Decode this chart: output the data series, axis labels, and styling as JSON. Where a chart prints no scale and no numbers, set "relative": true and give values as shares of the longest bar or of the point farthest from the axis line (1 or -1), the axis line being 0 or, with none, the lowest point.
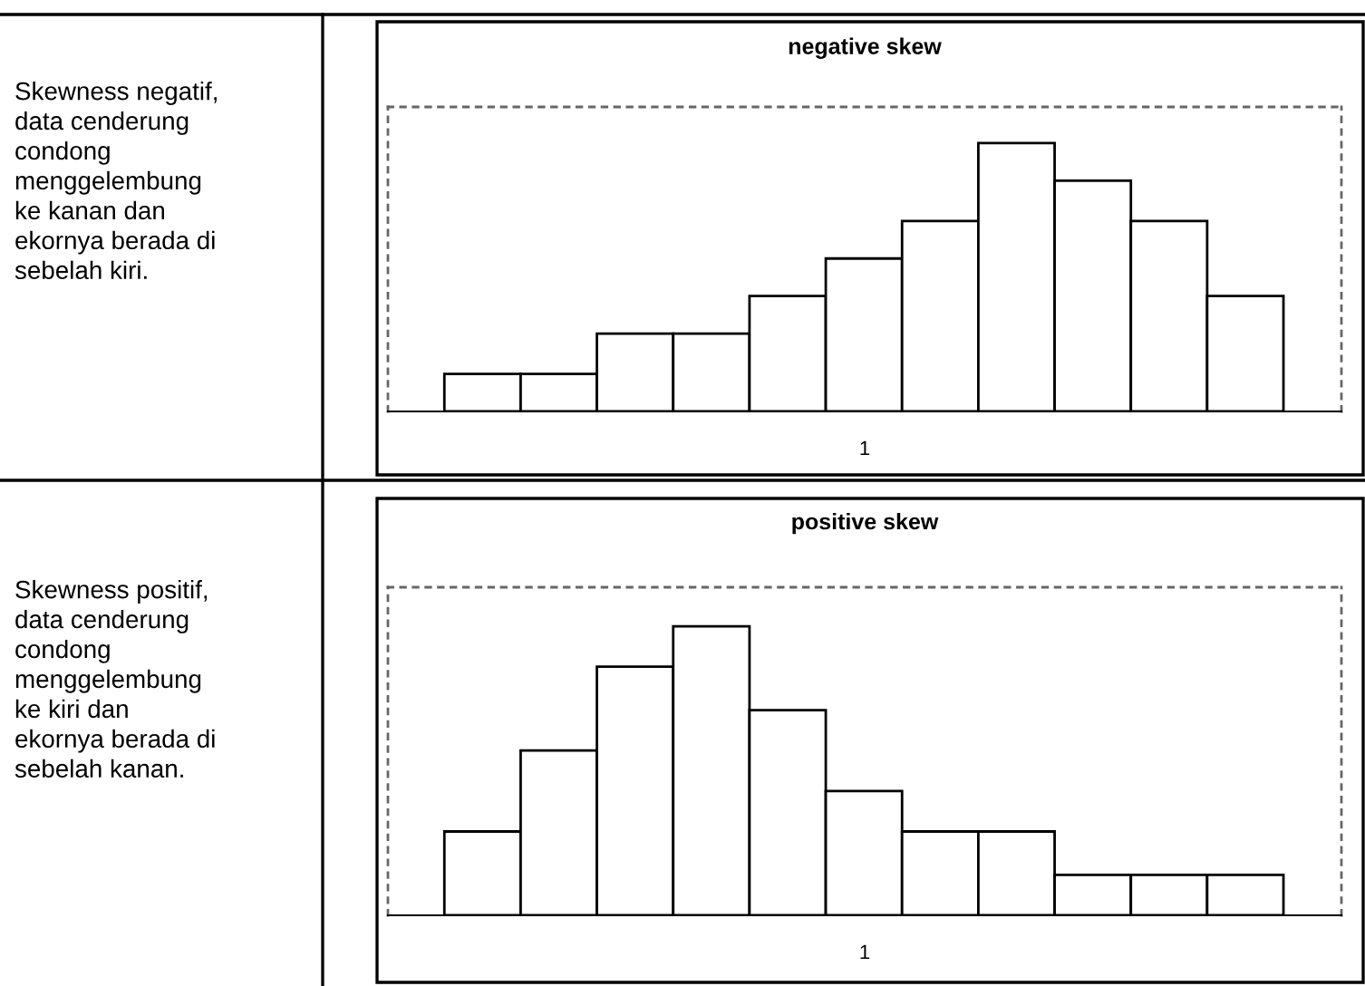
{
  "chart_data": [
    {
      "type": "bar",
      "title": "negative skew",
      "xlabel": "1",
      "relative": true,
      "color": "#ffffff",
      "categories": [
        null,
        null,
        null,
        null,
        null,
        null,
        null,
        null,
        null,
        null,
        null
      ],
      "values": [
        0.14,
        0.14,
        0.29,
        0.29,
        0.43,
        0.57,
        0.71,
        1,
        0.86,
        0.71,
        0.43
      ],
      "annotations": [
        "Skewness negatif,\ndata cenderung\ncondong\nmenggelembung\nke kanan dan\nekornya berada di\nsebelah kiri."
      ]
    },
    {
      "type": "bar",
      "title": "positive skew",
      "xlabel": "1",
      "relative": true,
      "color": "#ffffff",
      "categories": [
        null,
        null,
        null,
        null,
        null,
        null,
        null,
        null,
        null,
        null,
        null
      ],
      "values": [
        0.29,
        0.57,
        0.86,
        1,
        0.71,
        0.43,
        0.29,
        0.29,
        0.14,
        0.14,
        0.14
      ],
      "annotations": [
        "Skewness positif,\ndata cenderung\ncondong\nmenggelembung\nke kiri dan\nekornya berada di\nsebelah kanan."
      ]
    }
  ]
}
